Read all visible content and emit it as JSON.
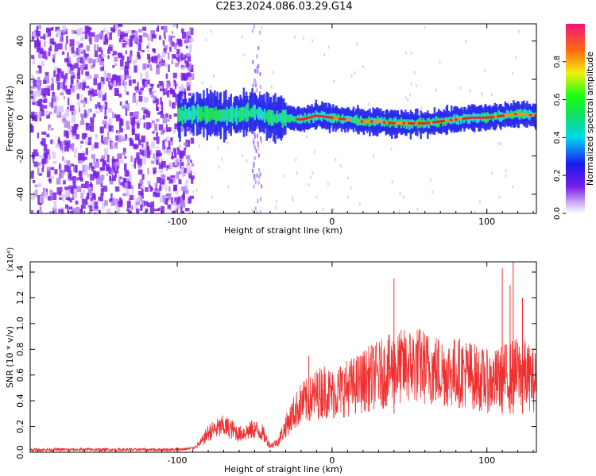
{
  "figure_title": "C2E3.2024.086.03.29.G14",
  "colors": {
    "signal": "#f03030",
    "scatter": "#7a1fe8",
    "ridge_core": "#e82828",
    "ridge_mid": "#22e05a",
    "ridge_edge": "#2a2aee"
  },
  "chart_data": [
    {
      "type": "heatmap",
      "title": "",
      "xlabel": "Height of straight line (km)",
      "ylabel": "Frequency (Hz)",
      "xlim": [
        -195,
        132
      ],
      "ylim": [
        -50,
        49
      ],
      "xticks": [
        -100,
        0,
        100
      ],
      "xtick_labels": [
        "-100",
        "0",
        "100"
      ],
      "yticks": [
        -40,
        -20,
        0,
        20,
        40
      ],
      "ytick_labels": [
        "-40",
        "-20",
        "0",
        "20",
        "40"
      ],
      "noise_region_x": [
        -195,
        -95
      ],
      "ridge": {
        "x": [
          -100,
          -90,
          -80,
          -70,
          -60,
          -50,
          -40,
          -30,
          -20,
          -10,
          0,
          10,
          20,
          30,
          40,
          50,
          60,
          70,
          80,
          90,
          100,
          110,
          120,
          132
        ],
        "freq": [
          1,
          2,
          2,
          1,
          2,
          3,
          0,
          0,
          -1,
          1,
          0,
          -1,
          -2,
          -2,
          -3,
          -3,
          -3,
          -2,
          -1,
          0,
          0,
          1,
          2,
          1
        ]
      },
      "colorbar": {
        "label": "Normalized spectral amplitude",
        "range": [
          0,
          1
        ],
        "ticks": [
          0.0,
          0.2,
          0.4,
          0.6,
          0.8
        ],
        "tick_labels": [
          "0.0",
          "0.2",
          "0.4",
          "0.6",
          "0.8"
        ]
      }
    },
    {
      "type": "line",
      "title": "",
      "xlabel": "Height of straight line (km)",
      "ylabel": "SNR (10 * v/v)",
      "y_multiplier": "(x10⁴)",
      "xlim": [
        -195,
        132
      ],
      "ylim": [
        0,
        1.48
      ],
      "xticks": [
        -100,
        0,
        100
      ],
      "xtick_labels": [
        "-100",
        "0",
        "100"
      ],
      "yticks": [
        0,
        0.2,
        0.4,
        0.6,
        0.8,
        1.0,
        1.2,
        1.4
      ],
      "ytick_labels": [
        "0.0",
        "0.2",
        "0.4",
        "0.6",
        "0.8",
        "1.0",
        "1.2",
        "1.4"
      ],
      "series": [
        {
          "name": "SNR",
          "x": [
            -195,
            -180,
            -160,
            -140,
            -120,
            -100,
            -90,
            -85,
            -80,
            -75,
            -70,
            -65,
            -60,
            -55,
            -50,
            -45,
            -40,
            -35,
            -30,
            -25,
            -20,
            -15,
            -10,
            -5,
            0,
            5,
            10,
            15,
            20,
            25,
            30,
            35,
            40,
            45,
            50,
            55,
            60,
            65,
            70,
            75,
            80,
            85,
            90,
            95,
            100,
            105,
            110,
            115,
            120,
            125,
            132
          ],
          "y": [
            0.02,
            0.02,
            0.02,
            0.02,
            0.02,
            0.02,
            0.03,
            0.07,
            0.15,
            0.18,
            0.2,
            0.18,
            0.14,
            0.16,
            0.18,
            0.15,
            0.05,
            0.08,
            0.2,
            0.3,
            0.38,
            0.4,
            0.45,
            0.48,
            0.45,
            0.48,
            0.5,
            0.52,
            0.55,
            0.58,
            0.6,
            0.62,
            0.65,
            0.66,
            0.67,
            0.68,
            0.66,
            0.64,
            0.63,
            0.62,
            0.62,
            0.62,
            0.6,
            0.57,
            0.55,
            0.55,
            0.58,
            0.6,
            0.62,
            0.6,
            0.55
          ],
          "peaks_x": [
            -15,
            40,
            110,
            115,
            117,
            123
          ],
          "peaks_y": [
            0.75,
            1.35,
            1.43,
            1.3,
            1.48,
            1.2
          ]
        }
      ]
    }
  ]
}
